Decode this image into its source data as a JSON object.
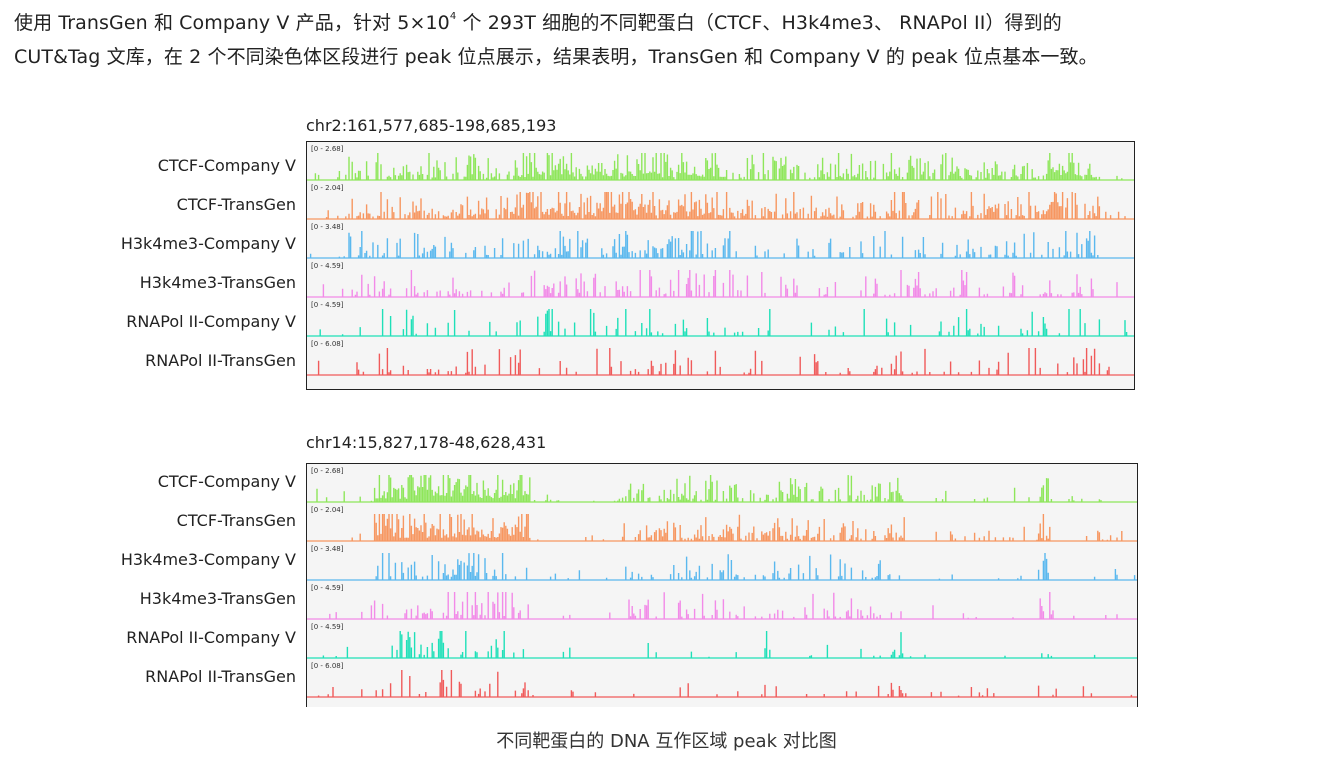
{
  "intro": {
    "line1_prefix": "使用 TransGen 和 Company V 产品，针对 5×10",
    "line1_exp": "4",
    "line1_suffix": " 个 293T 细胞的不同靶蛋白（CTCF、H3k4me3、 RNAPol II）得到的",
    "line2": "CUT&Tag 文库，在 2 个不同染色体区段进行 peak 位点展示，结果表明，TransGen 和 Company V 的 peak 位点基本一致。"
  },
  "panels": [
    {
      "region": "chr2:161,577,685-198,685,193",
      "tracks": [
        {
          "label": "CTCF-Company V",
          "range": "[0 - 2.68]",
          "color": "#8ee65a"
        },
        {
          "label": "CTCF-TransGen",
          "range": "[0 - 2.04]",
          "color": "#f79660"
        },
        {
          "label": "H3k4me3-Company V",
          "range": "[0 - 3.48]",
          "color": "#5ab8ee"
        },
        {
          "label": "H3k4me3-TransGen",
          "range": "[0 - 4.59]",
          "color": "#f28ae8"
        },
        {
          "label": "RNAPol II-Company V",
          "range": "[0 - 4.59]",
          "color": "#1ee0b8"
        },
        {
          "label": "RNAPol II-TransGen",
          "range": "[0 - 6.08]",
          "color": "#f05a5a"
        }
      ]
    },
    {
      "region": "chr14:15,827,178-48,628,431",
      "tracks": [
        {
          "label": "CTCF-Company V",
          "range": "[0 - 2.68]",
          "color": "#8ee65a"
        },
        {
          "label": "CTCF-TransGen",
          "range": "[0 - 2.04]",
          "color": "#f79660"
        },
        {
          "label": "H3k4me3-Company V",
          "range": "[0 - 3.48]",
          "color": "#5ab8ee"
        },
        {
          "label": "H3k4me3-TransGen",
          "range": "[0 - 4.59]",
          "color": "#f28ae8"
        },
        {
          "label": "RNAPol II-Company V",
          "range": "[0 - 4.59]",
          "color": "#1ee0b8"
        },
        {
          "label": "RNAPol II-TransGen",
          "range": "[0 - 6.08]",
          "color": "#f05a5a"
        }
      ]
    }
  ],
  "caption": "不同靶蛋白的 DNA 互作区域 peak 对比图"
}
